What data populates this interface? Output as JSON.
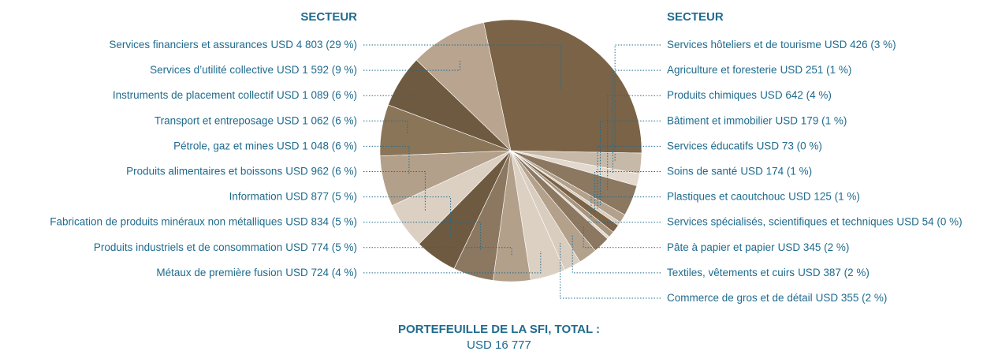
{
  "chart_data": {
    "type": "pie",
    "legend_titles": [
      "SECTEUR",
      "SECTEUR"
    ],
    "footer_title": "PORTEFEUILLE DE LA SFI, TOTAL :",
    "total": "USD 16 777",
    "categories": [
      "Services financiers et assurances",
      "Services hôteliers et de tourisme",
      "Agriculture et foresterie",
      "Produits chimiques",
      "Bâtiment et immobilier",
      "Services éducatifs",
      "Soins de santé",
      "Plastiques et caoutchouc",
      "Services spécialisés, scientifiques et techniques",
      "Pâte à papier et papier",
      "Textiles, vêtements et cuirs",
      "Commerce de gros et de détail",
      "Métaux de première fusion",
      "Produits industriels et de consommation",
      "Fabrication de produits minéraux non métalliques",
      "Information",
      "Produits alimentaires et boissons",
      "Pétrole, gaz et mines",
      "Transport et entreposage",
      "Instruments de placement collectif",
      "Services d’utilité collective"
    ],
    "values": [
      4803,
      426,
      251,
      642,
      179,
      73,
      174,
      125,
      54,
      345,
      387,
      355,
      724,
      774,
      834,
      877,
      962,
      1048,
      1062,
      1089,
      1592
    ],
    "value_labels": [
      "USD 4 803 (29 %)",
      "USD 426 (3 %)",
      "USD 251 (1 %)",
      "USD 642 (4 %)",
      "USD 179 (1 %)",
      "USD 73 (0 %)",
      "USD 174 (1 %)",
      "USD 125 (1 %)",
      "USD 54 (0 %)",
      "USD 345 (2 %)",
      "USD 387 (2 %)",
      "USD 355 (2 %)",
      "USD 724 (4 %)",
      "USD 774 (5 %)",
      "USD 834 (5 %)",
      "USD 877 (5 %)",
      "USD 962 (6 %)",
      "USD 1 048 (6 %)",
      "USD 1 062 (6 %)",
      "USD 1 089 (6 %)",
      "USD 1 592 (9 %)"
    ],
    "colors": [
      "#7b6347",
      "#c7b9a8",
      "#e3d9ce",
      "#8c7860",
      "#b3a18c",
      "#d9cdbf",
      "#7b6347",
      "#a8957e",
      "#e3d9ce",
      "#8c7860",
      "#b3a18c",
      "#d9cdbf",
      "#dcd0c3",
      "#b3a08a",
      "#8c7860",
      "#6e5a40",
      "#dcd0c3",
      "#b3a08a",
      "#8a7558",
      "#6e5a40",
      "#b8a48f"
    ]
  }
}
